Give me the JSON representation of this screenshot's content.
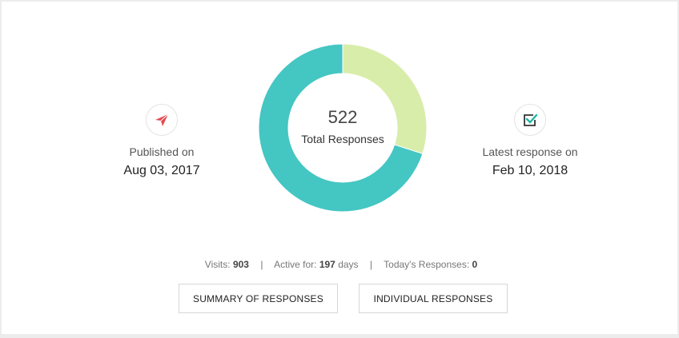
{
  "summary": {
    "total_count": "522",
    "total_label": "Total Responses",
    "responses_fraction": [
      0.3,
      0.7
    ],
    "colors": {
      "light": "#d9edaa",
      "teal": "#44c6c3",
      "send_icon": "#e5484d",
      "check_icon": "#1fb8a5",
      "check_box": "#333333"
    }
  },
  "published": {
    "icon": "paper-plane-icon",
    "label": "Published on",
    "date": "Aug 03, 2017"
  },
  "latest": {
    "icon": "checkbox-check-icon",
    "label": "Latest response on",
    "date": "Feb 10, 2018"
  },
  "meta": {
    "visits_label": "Visits:",
    "visits_value": "903",
    "active_label": "Active for:",
    "active_value": "197",
    "active_unit": "days",
    "today_label": "Today's Responses:",
    "today_value": "0",
    "separator": "|"
  },
  "buttons": {
    "summary_label": "SUMMARY OF RESPONSES",
    "individual_label": "INDIVIDUAL RESPONSES"
  }
}
